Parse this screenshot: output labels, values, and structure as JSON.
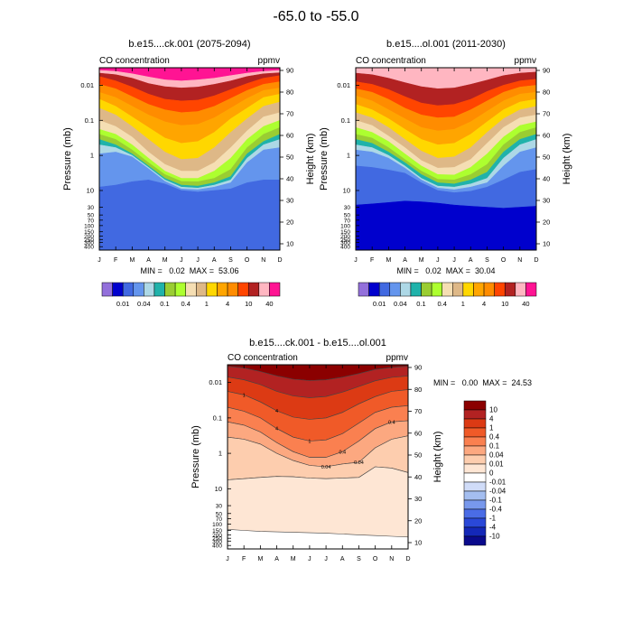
{
  "main_title": "-65.0 to -55.0",
  "chart_data": [
    {
      "type": "heatmap",
      "title": "b.e15....ck.001 (2075-2094)",
      "subtitle_left": "CO concentration",
      "subtitle_right": "ppmv",
      "ylabel": "Pressure (mb)",
      "ylabel_right": "Height (km)",
      "x_ticks": [
        "J",
        "F",
        "M",
        "A",
        "M",
        "J",
        "J",
        "A",
        "S",
        "O",
        "N",
        "D"
      ],
      "y_ticks_pressure": [
        "0.01",
        "0.1",
        "1",
        "10",
        "30",
        "50",
        "70",
        "100",
        "150",
        "200",
        "250",
        "300",
        "400"
      ],
      "y_ticks_height": [
        "90",
        "80",
        "70",
        "60",
        "50",
        "40",
        "30",
        "20",
        "10"
      ],
      "stats": "MIN =   0.02  MAX =  53.06",
      "legend_labels": [
        "0.01",
        "0.04",
        "0.1",
        "0.4",
        "1",
        "4",
        "10",
        "40"
      ],
      "level_colors": [
        "#9370DB",
        "#0000CD",
        "#4169E1",
        "#6495ED",
        "#ADD8E6",
        "#20B2AA",
        "#9ACD32",
        "#ADFF2F",
        "#F5DEB3",
        "#DEB887",
        "#FFD700",
        "#FFA500",
        "#FF8C00",
        "#FF4500",
        "#B22222",
        "#FFB6C1",
        "#FF1493"
      ],
      "levels_top_to_bottom": [
        16,
        15,
        14,
        13,
        12,
        11,
        10,
        9,
        8,
        7,
        6,
        5,
        4,
        3,
        2
      ],
      "boundaries_pressure": [
        [
          0.00375,
          0.004,
          0.0047,
          0.0058,
          0.007,
          0.0075,
          0.007,
          0.0063,
          0.0053,
          0.0045,
          0.004,
          0.00375
        ],
        [
          0.0045,
          0.005,
          0.0063,
          0.0089,
          0.011,
          0.0119,
          0.0112,
          0.0094,
          0.0075,
          0.0056,
          0.0047,
          0.0044
        ],
        [
          0.0056,
          0.0075,
          0.0112,
          0.0178,
          0.025,
          0.028,
          0.0265,
          0.02,
          0.0133,
          0.0089,
          0.0063,
          0.0053
        ],
        [
          0.0094,
          0.0126,
          0.0211,
          0.035,
          0.05,
          0.06,
          0.056,
          0.04,
          0.0237,
          0.0141,
          0.0094,
          0.0079
        ],
        [
          0.0158,
          0.0224,
          0.0398,
          0.07,
          0.11,
          0.14,
          0.13,
          0.085,
          0.045,
          0.0237,
          0.0141,
          0.0119
        ],
        [
          0.025,
          0.04,
          0.08,
          0.16,
          0.32,
          0.45,
          0.4,
          0.22,
          0.09,
          0.045,
          0.0224,
          0.0178
        ],
        [
          0.045,
          0.07,
          0.15,
          0.35,
          0.8,
          1.3,
          1.2,
          0.6,
          0.22,
          0.09,
          0.04,
          0.03
        ],
        [
          0.1,
          0.15,
          0.3,
          0.8,
          1.8,
          2.8,
          2.8,
          1.6,
          0.6,
          0.2,
          0.08,
          0.06
        ],
        [
          0.18,
          0.25,
          0.5,
          1.2,
          2.8,
          4.5,
          4.5,
          2.8,
          1.2,
          0.35,
          0.15,
          0.1
        ],
        [
          0.25,
          0.35,
          0.7,
          1.6,
          3.5,
          5.5,
          5.6,
          4.5,
          2.5,
          0.6,
          0.25,
          0.16
        ],
        [
          0.35,
          0.5,
          0.9,
          2,
          4.5,
          7,
          7.5,
          6,
          4,
          0.9,
          0.4,
          0.25
        ],
        [
          0.5,
          0.6,
          1,
          2.2,
          5,
          8,
          8.5,
          7,
          5,
          1.2,
          0.5,
          0.35
        ],
        [
          0.9,
          0.8,
          1.1,
          2.4,
          5.5,
          9,
          9.5,
          8,
          6,
          1.6,
          0.7,
          0.6
        ],
        [
          8,
          7,
          5.6,
          5,
          6.5,
          10,
          11,
          10,
          9,
          6,
          5,
          5
        ],
        [
          500,
          500,
          500,
          500,
          500,
          500,
          500,
          500,
          500,
          500,
          500,
          500
        ]
      ]
    },
    {
      "type": "heatmap",
      "title": "b.e15....ol.001 (2011-2030)",
      "subtitle_left": "CO concentration",
      "subtitle_right": "ppmv",
      "ylabel": "Pressure (mb)",
      "ylabel_right": "Height (km)",
      "x_ticks": [
        "J",
        "F",
        "M",
        "A",
        "M",
        "J",
        "J",
        "A",
        "S",
        "O",
        "N",
        "D"
      ],
      "y_ticks_pressure": [
        "0.01",
        "0.1",
        "1",
        "10",
        "30",
        "50",
        "70",
        "100",
        "150",
        "200",
        "250",
        "300",
        "400"
      ],
      "y_ticks_height": [
        "90",
        "80",
        "70",
        "60",
        "50",
        "40",
        "30",
        "20",
        "10"
      ],
      "stats": "MIN =   0.02  MAX =  30.04",
      "legend_labels": [
        "0.01",
        "0.04",
        "0.1",
        "0.4",
        "1",
        "4",
        "10",
        "40"
      ],
      "level_colors": [
        "#9370DB",
        "#0000CD",
        "#4169E1",
        "#6495ED",
        "#ADD8E6",
        "#20B2AA",
        "#9ACD32",
        "#ADFF2F",
        "#F5DEB3",
        "#DEB887",
        "#FFD700",
        "#FFA500",
        "#FF8C00",
        "#FF4500",
        "#B22222",
        "#FFB6C1",
        "#FF1493"
      ],
      "levels_top_to_bottom": [
        15,
        14,
        13,
        12,
        11,
        10,
        9,
        8,
        7,
        6,
        5,
        4,
        3,
        2,
        1
      ],
      "boundaries_pressure": [
        [
          0.0045,
          0.005,
          0.0063,
          0.0084,
          0.011,
          0.0126,
          0.0119,
          0.0094,
          0.0071,
          0.0053,
          0.0045,
          0.0042
        ],
        [
          0.0079,
          0.0094,
          0.0133,
          0.0211,
          0.032,
          0.038,
          0.035,
          0.0251,
          0.015,
          0.01,
          0.0075,
          0.0067
        ],
        [
          0.0126,
          0.0158,
          0.0251,
          0.045,
          0.07,
          0.085,
          0.08,
          0.05,
          0.028,
          0.0158,
          0.0112,
          0.01
        ],
        [
          0.02,
          0.028,
          0.05,
          0.09,
          0.16,
          0.2,
          0.18,
          0.11,
          0.055,
          0.028,
          0.0178,
          0.0158
        ],
        [
          0.035,
          0.05,
          0.09,
          0.18,
          0.35,
          0.5,
          0.45,
          0.25,
          0.11,
          0.05,
          0.03,
          0.025
        ],
        [
          0.06,
          0.085,
          0.16,
          0.35,
          0.75,
          1.2,
          1.1,
          0.6,
          0.22,
          0.09,
          0.05,
          0.04
        ],
        [
          0.1,
          0.14,
          0.28,
          0.6,
          1.4,
          2.3,
          2.2,
          1.3,
          0.45,
          0.16,
          0.085,
          0.07
        ],
        [
          0.16,
          0.22,
          0.4,
          0.9,
          2,
          3.5,
          3.6,
          2.2,
          0.9,
          0.3,
          0.14,
          0.11
        ],
        [
          0.25,
          0.32,
          0.6,
          1.3,
          2.8,
          4.8,
          5,
          3.5,
          1.8,
          0.5,
          0.22,
          0.16
        ],
        [
          0.35,
          0.45,
          0.8,
          1.6,
          3.5,
          6,
          6.5,
          5,
          3,
          0.8,
          0.35,
          0.25
        ],
        [
          0.5,
          0.6,
          1,
          2,
          4.5,
          7.5,
          8,
          6.5,
          4.5,
          1.2,
          0.5,
          0.35
        ],
        [
          0.7,
          0.8,
          1.2,
          2.3,
          5,
          8.5,
          9.5,
          8,
          6,
          2,
          0.8,
          0.6
        ],
        [
          2,
          2.2,
          2.6,
          3.2,
          6,
          10,
          11.5,
          10.5,
          8,
          5,
          3,
          2.5
        ],
        [
          26,
          24,
          22,
          20,
          21,
          23,
          26,
          28,
          30,
          32,
          30,
          28
        ],
        [
          500,
          500,
          500,
          500,
          500,
          500,
          500,
          500,
          500,
          500,
          500,
          500
        ]
      ]
    },
    {
      "type": "heatmap",
      "title": "b.e15....ck.001 - b.e15....ol.001",
      "subtitle_left": "CO concentration",
      "subtitle_right": "ppmv",
      "ylabel": "Pressure (mb)",
      "ylabel_right": "Height (km)",
      "x_ticks": [
        "J",
        "F",
        "M",
        "A",
        "M",
        "J",
        "J",
        "A",
        "S",
        "O",
        "N",
        "D"
      ],
      "y_ticks_pressure": [
        "0.01",
        "0.1",
        "1",
        "10",
        "30",
        "50",
        "70",
        "100",
        "150",
        "200",
        "250",
        "300",
        "400"
      ],
      "y_ticks_height": [
        "90",
        "80",
        "70",
        "60",
        "50",
        "40",
        "30",
        "20",
        "10"
      ],
      "stats": "MIN =   0.00  MAX =  24.53",
      "legend_labels": [
        "10",
        "4",
        "1",
        "0.4",
        "0.1",
        "0.04",
        "0.01",
        "0",
        "-0.01",
        "-0.04",
        "-0.1",
        "-0.4",
        "-1",
        "-4",
        "-10"
      ],
      "legend_colors": [
        "#8B0000",
        "#B22222",
        "#DC3A14",
        "#F05A28",
        "#FA8050",
        "#FCA880",
        "#FDCDAE",
        "#FEE6D4",
        "#FFFFFF",
        "#D0DCF8",
        "#A4BEF0",
        "#7898EC",
        "#4A6CE6",
        "#2A48D8",
        "#1428B8",
        "#0A0A8C"
      ],
      "level_colors": [
        "#FEE6D4",
        "#FDCDAE",
        "#FCA880",
        "#FA8050",
        "#F05A28",
        "#DC3A14",
        "#B22222",
        "#8B0000"
      ],
      "contour_labels": [
        "4",
        "4",
        "1",
        "1",
        "0.4",
        "0.4",
        "0.04",
        "0.04"
      ],
      "levels_top_to_bottom": [
        7,
        6,
        5,
        4,
        3,
        2,
        1,
        0
      ],
      "boundaries_pressure": [
        [
          0.0035,
          0.0039,
          0.0049,
          0.0065,
          0.0081,
          0.0088,
          0.0084,
          0.0071,
          0.0056,
          0.0043,
          0.0038,
          0.0035
        ],
        [
          0.007,
          0.0084,
          0.0115,
          0.0178,
          0.024,
          0.027,
          0.025,
          0.0188,
          0.013,
          0.009,
          0.0072,
          0.0066
        ],
        [
          0.0178,
          0.0224,
          0.0355,
          0.063,
          0.095,
          0.11,
          0.1,
          0.07,
          0.04,
          0.0251,
          0.0178,
          0.016
        ],
        [
          0.05,
          0.065,
          0.1,
          0.2,
          0.35,
          0.45,
          0.42,
          0.28,
          0.14,
          0.07,
          0.05,
          0.045
        ],
        [
          0.13,
          0.16,
          0.25,
          0.5,
          0.9,
          1.3,
          1.3,
          0.9,
          0.45,
          0.2,
          0.13,
          0.12
        ],
        [
          0.35,
          0.4,
          0.55,
          1,
          1.6,
          2.2,
          2.4,
          2,
          1.8,
          0.7,
          0.4,
          0.32
        ],
        [
          5.6,
          5.2,
          4.8,
          4.5,
          4.6,
          5,
          5.2,
          5,
          4.8,
          2.4,
          2.6,
          3.5
        ],
        [
          140,
          150,
          160,
          165,
          170,
          175,
          180,
          190,
          200,
          210,
          220,
          230
        ]
      ]
    }
  ]
}
